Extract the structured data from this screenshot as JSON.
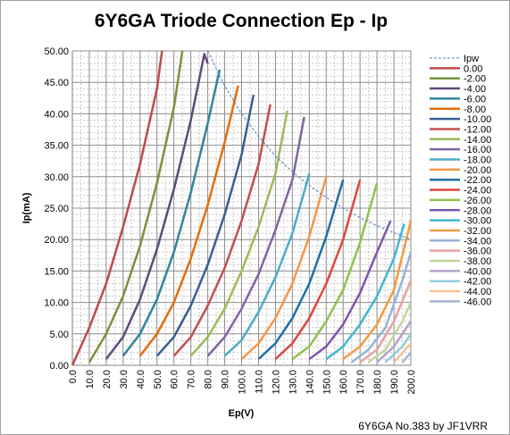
{
  "chart_data": {
    "type": "line",
    "title": "6Y6GA Triode Connection Ep - Ip",
    "xlabel": "Ep(V)",
    "ylabel": "Ip(mA)",
    "xlim": [
      0,
      200
    ],
    "ylim": [
      0,
      50
    ],
    "xticks": [
      "0.0",
      "10.0",
      "20.0",
      "30.0",
      "40.0",
      "50.0",
      "60.0",
      "70.0",
      "80.0",
      "90.0",
      "100.0",
      "110.0",
      "120.0",
      "130.0",
      "140.0",
      "150.0",
      "160.0",
      "170.0",
      "180.0",
      "190.0",
      "200.0"
    ],
    "yticks": [
      "0.00",
      "5.00",
      "10.00",
      "15.00",
      "20.00",
      "25.00",
      "30.00",
      "35.00",
      "40.00",
      "45.00",
      "50.00"
    ],
    "grid": true,
    "legend_position": "right",
    "pw_curve": {
      "name": "Ipw",
      "color": "#4f81bd",
      "x": [
        80,
        90,
        100,
        110,
        120,
        130,
        140,
        150,
        160,
        170,
        180,
        190,
        200
      ],
      "y": [
        50.0,
        44.4,
        40.0,
        36.4,
        33.3,
        30.8,
        28.6,
        26.7,
        25.0,
        23.5,
        22.2,
        21.1,
        20.0
      ]
    },
    "series": [
      {
        "name": "0.00",
        "color": "#be4b48",
        "x": [
          0,
          10,
          20,
          30,
          40,
          50,
          53
        ],
        "y": [
          0,
          6.0,
          13.0,
          22.0,
          32.0,
          44.0,
          50.0
        ]
      },
      {
        "name": "-2.00",
        "color": "#77933c",
        "x": [
          10,
          20,
          30,
          40,
          50,
          60,
          65
        ],
        "y": [
          0.5,
          5.0,
          11.0,
          19.0,
          29.0,
          41.0,
          50.0
        ]
      },
      {
        "name": "-4.00",
        "color": "#604a7b",
        "x": [
          20,
          30,
          40,
          50,
          60,
          70,
          78,
          80
        ],
        "y": [
          1.0,
          4.5,
          10.5,
          18.5,
          28.0,
          39.0,
          49.5,
          48.0
        ]
      },
      {
        "name": "-6.00",
        "color": "#31859c",
        "x": [
          30,
          40,
          50,
          60,
          70,
          80,
          87
        ],
        "y": [
          1.5,
          5.0,
          10.5,
          18.0,
          27.5,
          38.5,
          47.0
        ]
      },
      {
        "name": "-8.00",
        "color": "#e46c0a",
        "x": [
          40,
          50,
          60,
          70,
          80,
          90,
          98
        ],
        "y": [
          1.5,
          5.0,
          10.0,
          17.0,
          25.5,
          35.5,
          44.5
        ]
      },
      {
        "name": "-10.00",
        "color": "#376092",
        "x": [
          50,
          60,
          70,
          80,
          90,
          100,
          107
        ],
        "y": [
          1.5,
          4.5,
          9.5,
          16.0,
          24.0,
          33.5,
          43.0
        ]
      },
      {
        "name": "-12.00",
        "color": "#c0504d",
        "x": [
          60,
          70,
          80,
          90,
          100,
          110,
          117
        ],
        "y": [
          1.5,
          4.5,
          9.5,
          15.5,
          23.0,
          32.0,
          41.5
        ]
      },
      {
        "name": "-14.00",
        "color": "#9bbb59",
        "x": [
          70,
          80,
          90,
          100,
          110,
          120,
          127
        ],
        "y": [
          1.5,
          4.5,
          9.0,
          15.0,
          22.0,
          30.5,
          40.5
        ]
      },
      {
        "name": "-16.00",
        "color": "#8064a2",
        "x": [
          80,
          90,
          100,
          110,
          120,
          130,
          137
        ],
        "y": [
          1.5,
          4.5,
          9.0,
          14.5,
          21.5,
          29.5,
          39.5
        ]
      },
      {
        "name": "-18.00",
        "color": "#4bacc6",
        "x": [
          90,
          100,
          110,
          120,
          130,
          140
        ],
        "y": [
          1.5,
          4.0,
          8.5,
          14.0,
          21.0,
          30.5
        ]
      },
      {
        "name": "-20.00",
        "color": "#f79646",
        "x": [
          100,
          110,
          120,
          130,
          140,
          150
        ],
        "y": [
          1.0,
          3.5,
          7.5,
          13.0,
          20.5,
          30.0
        ]
      },
      {
        "name": "-22.00",
        "color": "#1f6ea7",
        "x": [
          110,
          120,
          130,
          140,
          150,
          160
        ],
        "y": [
          1.0,
          3.5,
          7.5,
          13.0,
          20.5,
          29.5
        ]
      },
      {
        "name": "-24.00",
        "color": "#e0443f",
        "x": [
          120,
          130,
          140,
          150,
          160,
          170
        ],
        "y": [
          1.0,
          3.5,
          7.5,
          13.0,
          20.0,
          29.5
        ]
      },
      {
        "name": "-26.00",
        "color": "#92c04e",
        "x": [
          130,
          140,
          150,
          160,
          170,
          180
        ],
        "y": [
          1.0,
          3.0,
          7.0,
          12.0,
          19.5,
          29.0
        ]
      },
      {
        "name": "-28.00",
        "color": "#7f55b0",
        "x": [
          140,
          150,
          160,
          170,
          180,
          188
        ],
        "y": [
          1.0,
          3.0,
          6.5,
          11.5,
          18.0,
          23.0
        ]
      },
      {
        "name": "-30.00",
        "color": "#3fb7d0",
        "x": [
          150,
          160,
          170,
          180,
          190,
          196
        ],
        "y": [
          1.0,
          3.0,
          6.5,
          11.0,
          17.0,
          22.5
        ]
      },
      {
        "name": "-32.00",
        "color": "#f39c3f",
        "x": [
          160,
          170,
          180,
          190,
          200
        ],
        "y": [
          1.0,
          3.0,
          6.5,
          12.0,
          23.0
        ]
      },
      {
        "name": "-34.00",
        "color": "#95b3d7",
        "x": [
          165,
          175,
          185,
          195,
          200
        ],
        "y": [
          0.5,
          2.5,
          6.0,
          13.5,
          18.0
        ]
      },
      {
        "name": "-36.00",
        "color": "#e6a1a0",
        "x": [
          170,
          180,
          190,
          200
        ],
        "y": [
          0.5,
          2.5,
          7.0,
          13.5
        ]
      },
      {
        "name": "-38.00",
        "color": "#c3d69b",
        "x": [
          175,
          185,
          195,
          200
        ],
        "y": [
          0.5,
          2.5,
          7.0,
          10.0
        ]
      },
      {
        "name": "-40.00",
        "color": "#b3a2c7",
        "x": [
          180,
          190,
          200
        ],
        "y": [
          0.5,
          3.0,
          7.0
        ]
      },
      {
        "name": "-42.00",
        "color": "#93cddd",
        "x": [
          185,
          195,
          200
        ],
        "y": [
          0.5,
          3.0,
          5.0
        ]
      },
      {
        "name": "-44.00",
        "color": "#fac090",
        "x": [
          190,
          200
        ],
        "y": [
          0.5,
          3.5
        ]
      },
      {
        "name": "-46.00",
        "color": "#a5b4d0",
        "x": [
          195,
          200
        ],
        "y": [
          0.5,
          2.0
        ]
      }
    ]
  },
  "footer": "6Y6GA No.383   by JF1VRR"
}
